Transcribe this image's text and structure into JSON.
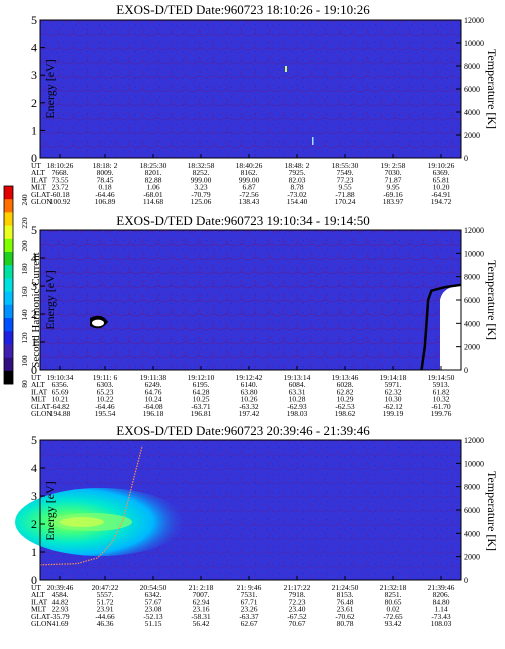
{
  "panels": [
    {
      "title": "EXOS-D/TED   Date:960723  18:10:26 - 19:10:26",
      "ylabel_left": "Energy [eV]",
      "ylabel_right": "Temperature [K]",
      "energy_ticks": [
        "5",
        "4",
        "3",
        "2",
        "1",
        "0"
      ],
      "temp_ticks": [
        "12000",
        "10000",
        "8000",
        "6000",
        "4000",
        "2000",
        "0"
      ],
      "ephemeris": {
        "rows": [
          "UT",
          "ALT",
          "ILAT",
          "MLT",
          "GLAT",
          "GLON"
        ],
        "columns": [
          [
            "18:10:26",
            "7668.",
            "73.55",
            "23.72",
            "-60.18",
            "100.92"
          ],
          [
            "18:18: 2",
            "8009.",
            "78.45",
            "0.18",
            "-64.46",
            "106.89"
          ],
          [
            "18:25:30",
            "8201.",
            "82.88",
            "1.06",
            "-68.01",
            "114.68"
          ],
          [
            "18:32:58",
            "8252.",
            "999.00",
            "3.23",
            "-70.79",
            "125.06"
          ],
          [
            "18:40:26",
            "8162.",
            "999.00",
            "6.87",
            "-72.56",
            "138.43"
          ],
          [
            "18:48: 2",
            "7925.",
            "82.03",
            "8.78",
            "-73.02",
            "154.40"
          ],
          [
            "18:55:30",
            "7549.",
            "77.23",
            "9.55",
            "-71.88",
            "170.24"
          ],
          [
            "19: 2:58",
            "7030.",
            "71.87",
            "9.95",
            "-69.16",
            "183.97"
          ],
          [
            "19:10:26",
            "6369.",
            "65.81",
            "10.20",
            "-64.91",
            "194.72"
          ]
        ]
      }
    },
    {
      "title": "EXOS-D/TED   Date:960723  19:10:34 - 19:14:50",
      "ylabel_left": "Energy [eV]",
      "ylabel_right": "Temperature [K]",
      "energy_ticks": [
        "5",
        "4",
        "3",
        "2",
        "1",
        "0"
      ],
      "temp_ticks": [
        "12000",
        "10000",
        "8000",
        "6000",
        "4000",
        "2000",
        "0"
      ],
      "ephemeris": {
        "rows": [
          "UT",
          "ALT",
          "ILAT",
          "MLT",
          "GLAT",
          "GLON"
        ],
        "columns": [
          [
            "19:10:34",
            "6356.",
            "65.69",
            "10.21",
            "-64.82",
            "194.88"
          ],
          [
            "19:11: 6",
            "6303.",
            "65.23",
            "10.22",
            "-64.46",
            "195.54"
          ],
          [
            "19:11:38",
            "6249.",
            "64.76",
            "10.24",
            "-64.08",
            "196.18"
          ],
          [
            "19:12:10",
            "6195.",
            "64.28",
            "10.25",
            "-63.71",
            "196.81"
          ],
          [
            "19:12:42",
            "6140.",
            "63.80",
            "10.26",
            "-63.32",
            "197.42"
          ],
          [
            "19:13:14",
            "6084.",
            "63.31",
            "10.28",
            "-62.93",
            "198.03"
          ],
          [
            "19:13:46",
            "6028.",
            "62.82",
            "10.29",
            "-62.53",
            "198.62"
          ],
          [
            "19:14:18",
            "5971.",
            "62.32",
            "10.30",
            "-62.12",
            "199.19"
          ],
          [
            "19:14:50",
            "5913.",
            "61.82",
            "10.32",
            "-61.70",
            "199.76"
          ]
        ]
      }
    },
    {
      "title": "EXOS-D/TED   Date:960723  20:39:46 - 21:39:46",
      "ylabel_left": "Energy [eV]",
      "ylabel_right": "Temperature [K]",
      "energy_ticks": [
        "5",
        "4",
        "3",
        "2",
        "1",
        "0"
      ],
      "temp_ticks": [
        "12000",
        "10000",
        "8000",
        "6000",
        "4000",
        "2000",
        "0"
      ],
      "ephemeris": {
        "rows": [
          "UT",
          "ALT",
          "ILAT",
          "MLT",
          "GLAT",
          "GLON"
        ],
        "columns": [
          [
            "20:39:46",
            "4584.",
            "44.82",
            "22.93",
            "-35.79",
            "41.69"
          ],
          [
            "20:47:22",
            "5557.",
            "51.72",
            "23.91",
            "-44.66",
            "46.36"
          ],
          [
            "20:54:50",
            "6342.",
            "57.67",
            "23.08",
            "-52.13",
            "51.15"
          ],
          [
            "21: 2:18",
            "7007.",
            "62.94",
            "23.16",
            "-58.31",
            "56.42"
          ],
          [
            "21: 9:46",
            "7531.",
            "67.71",
            "23.26",
            "-63.37",
            "62.67"
          ],
          [
            "21:17:22",
            "7918.",
            "72.23",
            "23.40",
            "-67.52",
            "70.67"
          ],
          [
            "21:24:50",
            "8153.",
            "76.48",
            "23.61",
            "-70.62",
            "80.78"
          ],
          [
            "21:32:18",
            "8251.",
            "80.65",
            "0.02",
            "-72.65",
            "93.42"
          ],
          [
            "21:39:46",
            "8206.",
            "84.80",
            "1.14",
            "-73.43",
            "108.03"
          ]
        ]
      }
    }
  ],
  "colorbar": {
    "label": "Second Harmonic Current",
    "ticks": [
      "240",
      "220",
      "200",
      "180",
      "160",
      "140",
      "120",
      "100",
      "80"
    ],
    "colors": [
      "#e00000",
      "#ff7000",
      "#ffd000",
      "#e8ff20",
      "#80ff00",
      "#20d020",
      "#00e0a0",
      "#00e0e0",
      "#00c0ff",
      "#0090ff",
      "#0050ff",
      "#2020e0",
      "#4020b0",
      "#301080",
      "#000000"
    ]
  },
  "chart_data": [
    {
      "type": "heatmap",
      "title": "EXOS-D/TED   Date:960723  18:10:26 - 19:10:26",
      "xlabel": "UT",
      "ylabel": "Energy [eV]",
      "y2label": "Temperature [K]",
      "ylim": [
        0,
        5
      ],
      "y2lim": [
        0,
        12000
      ],
      "background_level": 125,
      "features": [
        {
          "ut": "18:48:28",
          "energy_ev": 3.2,
          "level": 170
        },
        {
          "ut": "18:48:36",
          "energy_ev": 0.6,
          "level": 160
        }
      ]
    },
    {
      "type": "heatmap",
      "title": "EXOS-D/TED   Date:960723  19:10:34 - 19:14:50",
      "xlabel": "UT",
      "ylabel": "Energy [eV]",
      "y2label": "Temperature [K]",
      "ylim": [
        0,
        5
      ],
      "y2lim": [
        0,
        12000
      ],
      "background_level": 125,
      "features": [
        {
          "ut": "19:10:44",
          "energy_ev": 1.6,
          "level": 250
        },
        {
          "ut": "19:14:30",
          "energy_ev_range": [
            0,
            2.8
          ],
          "level": 80
        }
      ],
      "temperature_trace": [
        {
          "ut": "19:14:26",
          "temp_k": 0
        },
        {
          "ut": "19:14:28",
          "temp_k": 2000
        },
        {
          "ut": "19:14:29",
          "temp_k": 4000
        },
        {
          "ut": "19:14:30",
          "temp_k": 6000
        },
        {
          "ut": "19:14:32",
          "temp_k": 6800
        },
        {
          "ut": "19:14:40",
          "temp_k": 7100
        },
        {
          "ut": "19:14:50",
          "temp_k": 7300
        }
      ]
    },
    {
      "type": "heatmap",
      "title": "EXOS-D/TED   Date:960723  20:39:46 - 21:39:46",
      "xlabel": "UT",
      "ylabel": "Energy [eV]",
      "y2label": "Temperature [K]",
      "ylim": [
        0,
        5
      ],
      "y2lim": [
        0,
        12000
      ],
      "background_level": 125,
      "features": [
        {
          "ut_range": [
            "20:39:46",
            "20:48:30"
          ],
          "energy_ev_range": [
            1.6,
            2.5
          ],
          "peak_energy_ev": 2.05,
          "level": 175
        }
      ],
      "temperature_trace": [
        {
          "ut": "20:39:46",
          "temp_k": 1300
        },
        {
          "ut": "20:45:00",
          "temp_k": 1400
        },
        {
          "ut": "20:48:00",
          "temp_k": 1900
        },
        {
          "ut": "20:50:00",
          "temp_k": 3200
        },
        {
          "ut": "20:51:30",
          "temp_k": 5000
        },
        {
          "ut": "20:52:30",
          "temp_k": 7200
        },
        {
          "ut": "20:53:30",
          "temp_k": 9600
        },
        {
          "ut": "20:54:20",
          "temp_k": 11500
        }
      ]
    }
  ]
}
